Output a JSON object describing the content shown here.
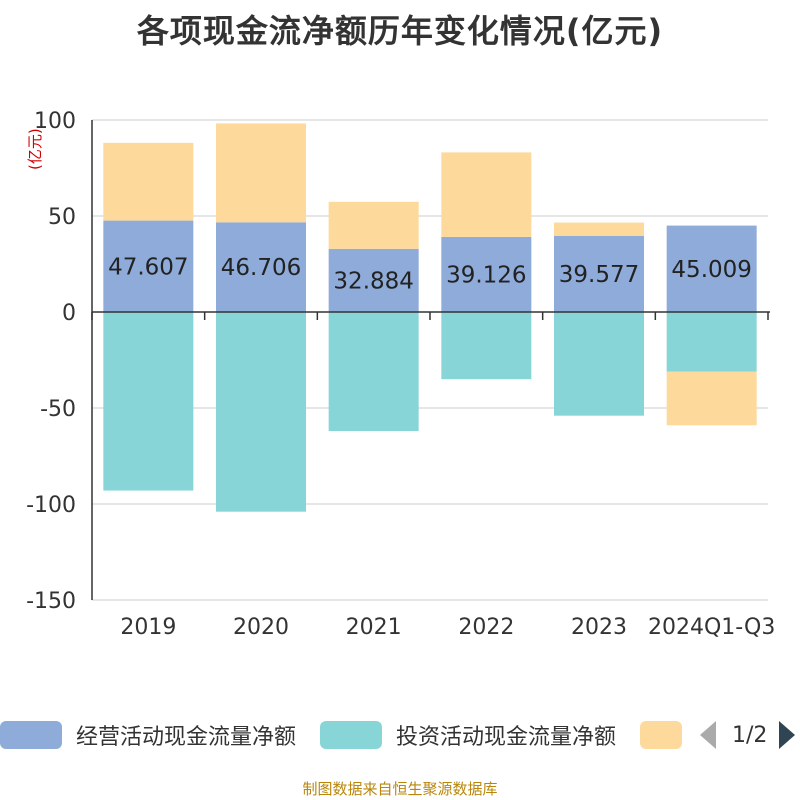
{
  "title": "各项现金流净额历年变化情况(亿元)",
  "unit_label": "(亿元)",
  "source": "制图数据来自恒生聚源数据库",
  "legend": {
    "items": [
      {
        "label": "经营活动现金流量净额",
        "color": "#8eabd9"
      },
      {
        "label": "投资活动现金流量净额",
        "color": "#88d5d8"
      },
      {
        "label": "",
        "color": "#fdd99b"
      }
    ],
    "page": "1/2"
  },
  "chart_data": {
    "type": "bar",
    "stacked": true,
    "categories": [
      "2019",
      "2020",
      "2021",
      "2022",
      "2023",
      "2024Q1-Q3"
    ],
    "ylim": [
      -150,
      100
    ],
    "yticks": [
      "100",
      "50",
      "0",
      "-50",
      "-100",
      "-150"
    ],
    "ylabel": "(亿元)",
    "grid": true,
    "series": [
      {
        "name": "经营活动现金流量净额",
        "color": "#8eabd9",
        "values": [
          47.607,
          46.706,
          32.884,
          39.126,
          39.577,
          45.009
        ],
        "labels": [
          "47.607",
          "46.706",
          "32.884",
          "39.126",
          "39.577",
          "45.009"
        ]
      },
      {
        "name": "投资活动现金流量净额",
        "color": "#88d5d8",
        "values": [
          -93,
          -104,
          -62,
          -35,
          -54,
          -31
        ]
      },
      {
        "color": "#fdd99b",
        "values": [
          40.5,
          51.5,
          24.5,
          44,
          7,
          -28
        ]
      }
    ]
  }
}
